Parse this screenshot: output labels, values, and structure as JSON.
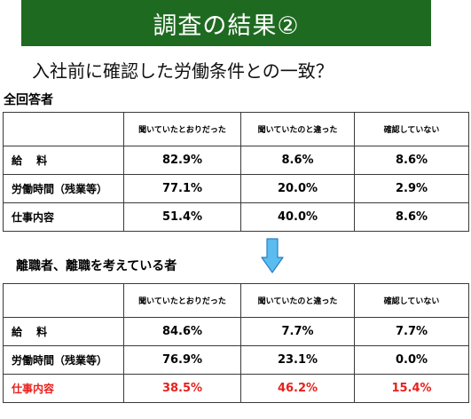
{
  "title": "調査の結果②",
  "subtitle": "入社前に確認した労働条件との一致？",
  "colors": {
    "banner": "#1f6a21",
    "banner_text": "#ffffff",
    "highlight_text": "#e8201c",
    "arrow_fill": "#5bbcf0",
    "arrow_stroke": "#2b7fc0"
  },
  "columns": [
    "聞いていたとおりだった",
    "聞いていたのと違った",
    "確認していない"
  ],
  "groups": [
    {
      "label": "全回答者",
      "rows": [
        {
          "label": "給　 料",
          "values": [
            "82.9%",
            "8.6%",
            "8.6%"
          ]
        },
        {
          "label": "労働時間（残業等）",
          "values": [
            "77.1%",
            "20.0%",
            "2.9%"
          ]
        },
        {
          "label": "仕事内容",
          "values": [
            "51.4%",
            "40.0%",
            "8.6%"
          ]
        }
      ]
    },
    {
      "label": "離職者、離職を考えている者",
      "rows": [
        {
          "label": "給　 料",
          "values": [
            "84.6%",
            "7.7%",
            "7.7%"
          ]
        },
        {
          "label": "労働時間（残業等）",
          "values": [
            "76.9%",
            "23.1%",
            "0.0%"
          ]
        },
        {
          "label": "仕事内容",
          "values": [
            "38.5%",
            "46.2%",
            "15.4%"
          ]
        }
      ]
    }
  ],
  "icons": {
    "arrow": "down-arrow-icon"
  }
}
